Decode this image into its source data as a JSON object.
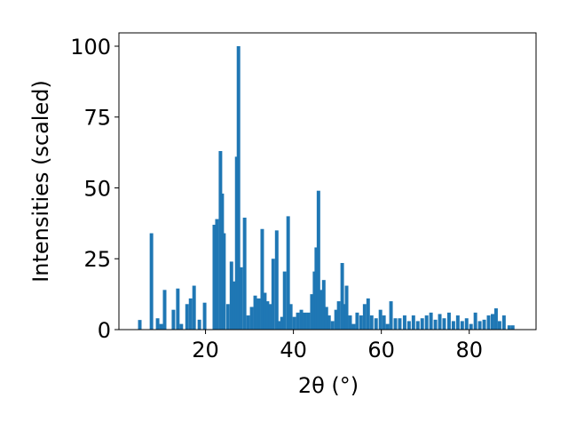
{
  "chart_data": {
    "type": "bar",
    "xlabel": "2θ (°)",
    "ylabel": "Intensities (scaled)",
    "color": "#1f77b4",
    "x": [
      5.05,
      7.7,
      9.1,
      9.9,
      10.7,
      12.7,
      13.7,
      14.5,
      15.8,
      16.6,
      17.4,
      18.6,
      19.8,
      22.0,
      22.6,
      23.4,
      23.8,
      24.2,
      25.1,
      25.9,
      26.5,
      27.1,
      27.5,
      28.1,
      28.9,
      29.7,
      30.5,
      31.3,
      32.1,
      32.9,
      33.5,
      34.1,
      34.7,
      35.4,
      36.2,
      36.8,
      37.4,
      38.0,
      38.8,
      39.4,
      40.2,
      41.0,
      41.8,
      42.6,
      43.4,
      44.2,
      44.8,
      45.2,
      45.7,
      46.3,
      46.9,
      47.5,
      48.1,
      48.9,
      49.7,
      50.3,
      51.1,
      51.7,
      52.1,
      52.9,
      53.7,
      54.5,
      55.4,
      56.2,
      57.0,
      57.8,
      58.8,
      59.8,
      60.6,
      61.4,
      62.2,
      63.2,
      64.2,
      65.3,
      66.3,
      67.3,
      68.3,
      69.3,
      70.3,
      71.3,
      72.3,
      73.3,
      74.3,
      75.4,
      76.4,
      77.4,
      78.4,
      79.4,
      80.4,
      81.4,
      82.4,
      83.4,
      84.4,
      85.3,
      86.1,
      86.9,
      87.9,
      89.1,
      89.9
    ],
    "values": [
      3.4,
      34,
      4,
      2,
      14,
      7,
      14.5,
      2,
      9,
      11,
      15.5,
      3.5,
      9.5,
      37,
      39,
      63,
      48,
      34,
      9,
      24,
      17,
      61,
      100,
      22,
      39.5,
      5,
      8,
      12,
      11,
      35.5,
      13,
      10,
      9,
      25,
      35,
      3,
      4.5,
      20.5,
      40,
      9,
      4.5,
      6,
      7,
      6,
      6,
      12.5,
      20.5,
      29,
      49,
      14,
      17.5,
      8,
      5,
      3,
      7,
      10,
      23.5,
      9,
      15.5,
      5,
      2,
      6,
      5,
      9,
      11,
      5,
      4,
      7,
      5,
      2,
      10,
      4,
      4,
      5,
      3,
      5,
      3,
      4,
      5,
      6,
      3.5,
      5.5,
      4,
      6,
      3,
      5,
      3,
      4,
      2,
      6,
      3,
      3.5,
      5,
      5.5,
      7.5,
      3,
      5,
      1.5,
      1.5
    ],
    "xlim": [
      0.3,
      95.2
    ],
    "xticks": [
      20,
      40,
      60,
      80
    ],
    "ylim": [
      0,
      104.7
    ],
    "yticks": [
      0,
      25,
      50,
      75,
      100
    ]
  }
}
